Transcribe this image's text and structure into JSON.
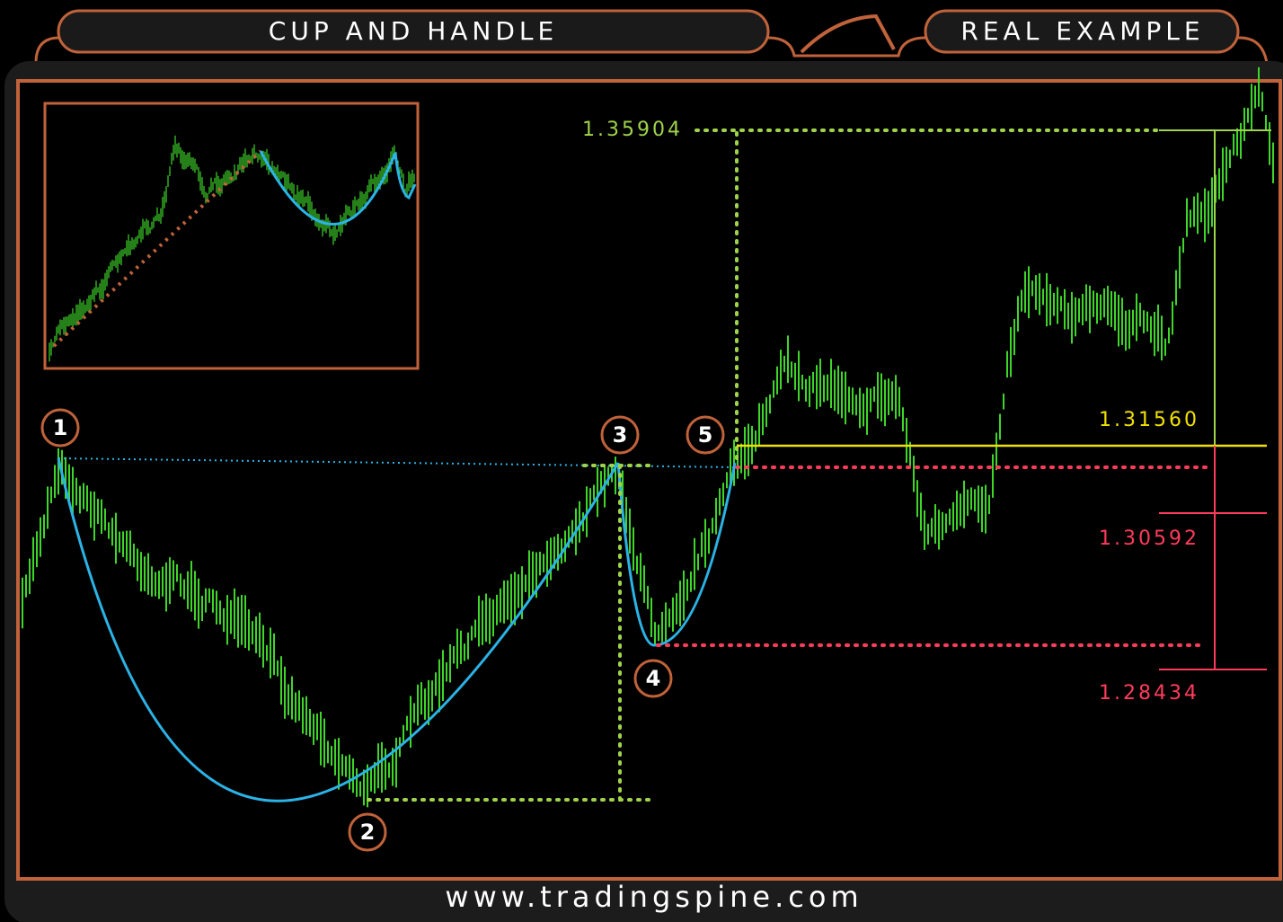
{
  "header": {
    "left_title": "CUP AND HANDLE",
    "right_title": "REAL EXAMPLE"
  },
  "points": [
    "1",
    "2",
    "3",
    "4",
    "5"
  ],
  "price_levels": [
    "1.35904",
    "1.31560",
    "1.30592",
    "1.28434"
  ],
  "footer": "www.tradingspine.com"
}
